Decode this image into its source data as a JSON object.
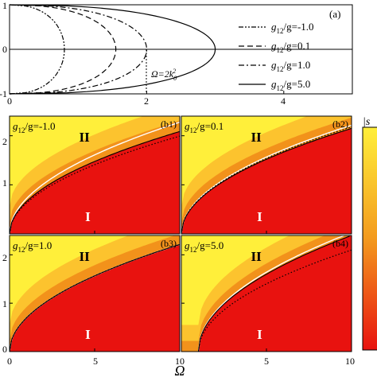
{
  "chart_data": [
    {
      "panel_label": "(a)",
      "type": "line",
      "xlim": [
        0,
        5
      ],
      "ylim": [
        -1,
        1
      ],
      "x_ticks": [
        "0",
        "2",
        "4"
      ],
      "y_ticks": [
        "1",
        "0",
        "-1"
      ],
      "annotation": "Ω=2k02",
      "annotation_text": "Ω=2k",
      "annotation_sup": "2",
      "annotation_sub": "0",
      "series": [
        {
          "name": "g12/g=-1.0",
          "name_sym": "g",
          "name_sub": "12",
          "name_rest": "/g=-1.0",
          "dash": "dash-dot-dot",
          "peak": 0.8
        },
        {
          "name": "g12/g=0.1",
          "name_sym": "g",
          "name_sub": "12",
          "name_rest": "/g=0.1",
          "dash": "dashed",
          "peak": 1.55
        },
        {
          "name": "g12/g=1.0",
          "name_sym": "g",
          "name_sub": "12",
          "name_rest": "/g=1.0",
          "dash": "dash-dot",
          "peak": 2.0
        },
        {
          "name": "g12/g=5.0",
          "name_sym": "g",
          "name_sub": "12",
          "name_rest": "/g=5.0",
          "dash": "solid",
          "peak": 3.0
        }
      ],
      "legend_position": "right"
    },
    {
      "type": "heatmap",
      "x_label": "Ω",
      "x_ticks": [
        "0",
        "5",
        "10"
      ],
      "y_ticks": [
        "0",
        "1",
        "2"
      ],
      "xlim": [
        0,
        10
      ],
      "ylim": [
        0,
        2.4
      ],
      "colorbar_label": "|s",
      "colors": {
        "region_I": "#e8120f",
        "region_II": "#ffef3a",
        "edge": "#f08a18"
      },
      "panels": [
        {
          "id": "(b1)",
          "ratio_sym": "g",
          "ratio_sub": "12",
          "ratio_rest": "/g=-1.0",
          "region_top": "II",
          "region_bottom": "I",
          "boundary_coef": 0.66,
          "white_coef": 0.72,
          "dotted_coef": 0.63,
          "offset": 0
        },
        {
          "id": "(b2)",
          "ratio_sym": "g",
          "ratio_sub": "12",
          "ratio_rest": "/g=0.1",
          "region_top": "II",
          "region_bottom": "I",
          "boundary_coef": 0.68,
          "white_coef": 0.7,
          "dotted_coef": 0.69,
          "offset": 0
        },
        {
          "id": "(b3)",
          "ratio_sym": "g",
          "ratio_sub": "12",
          "ratio_rest": "/g=1.0",
          "region_top": "II",
          "region_bottom": "I",
          "boundary_coef": 0.7,
          "white_coef": 0.7,
          "dotted_coef": 0.7,
          "offset": 0
        },
        {
          "id": "(b4)",
          "ratio_sym": "g",
          "ratio_sub": "12",
          "ratio_rest": "/g=5.0",
          "region_top": "II",
          "region_bottom": "I",
          "boundary_coef": 0.8,
          "white_coef": 0.82,
          "dotted_coef": 0.7,
          "offset": 1.0
        }
      ]
    }
  ]
}
